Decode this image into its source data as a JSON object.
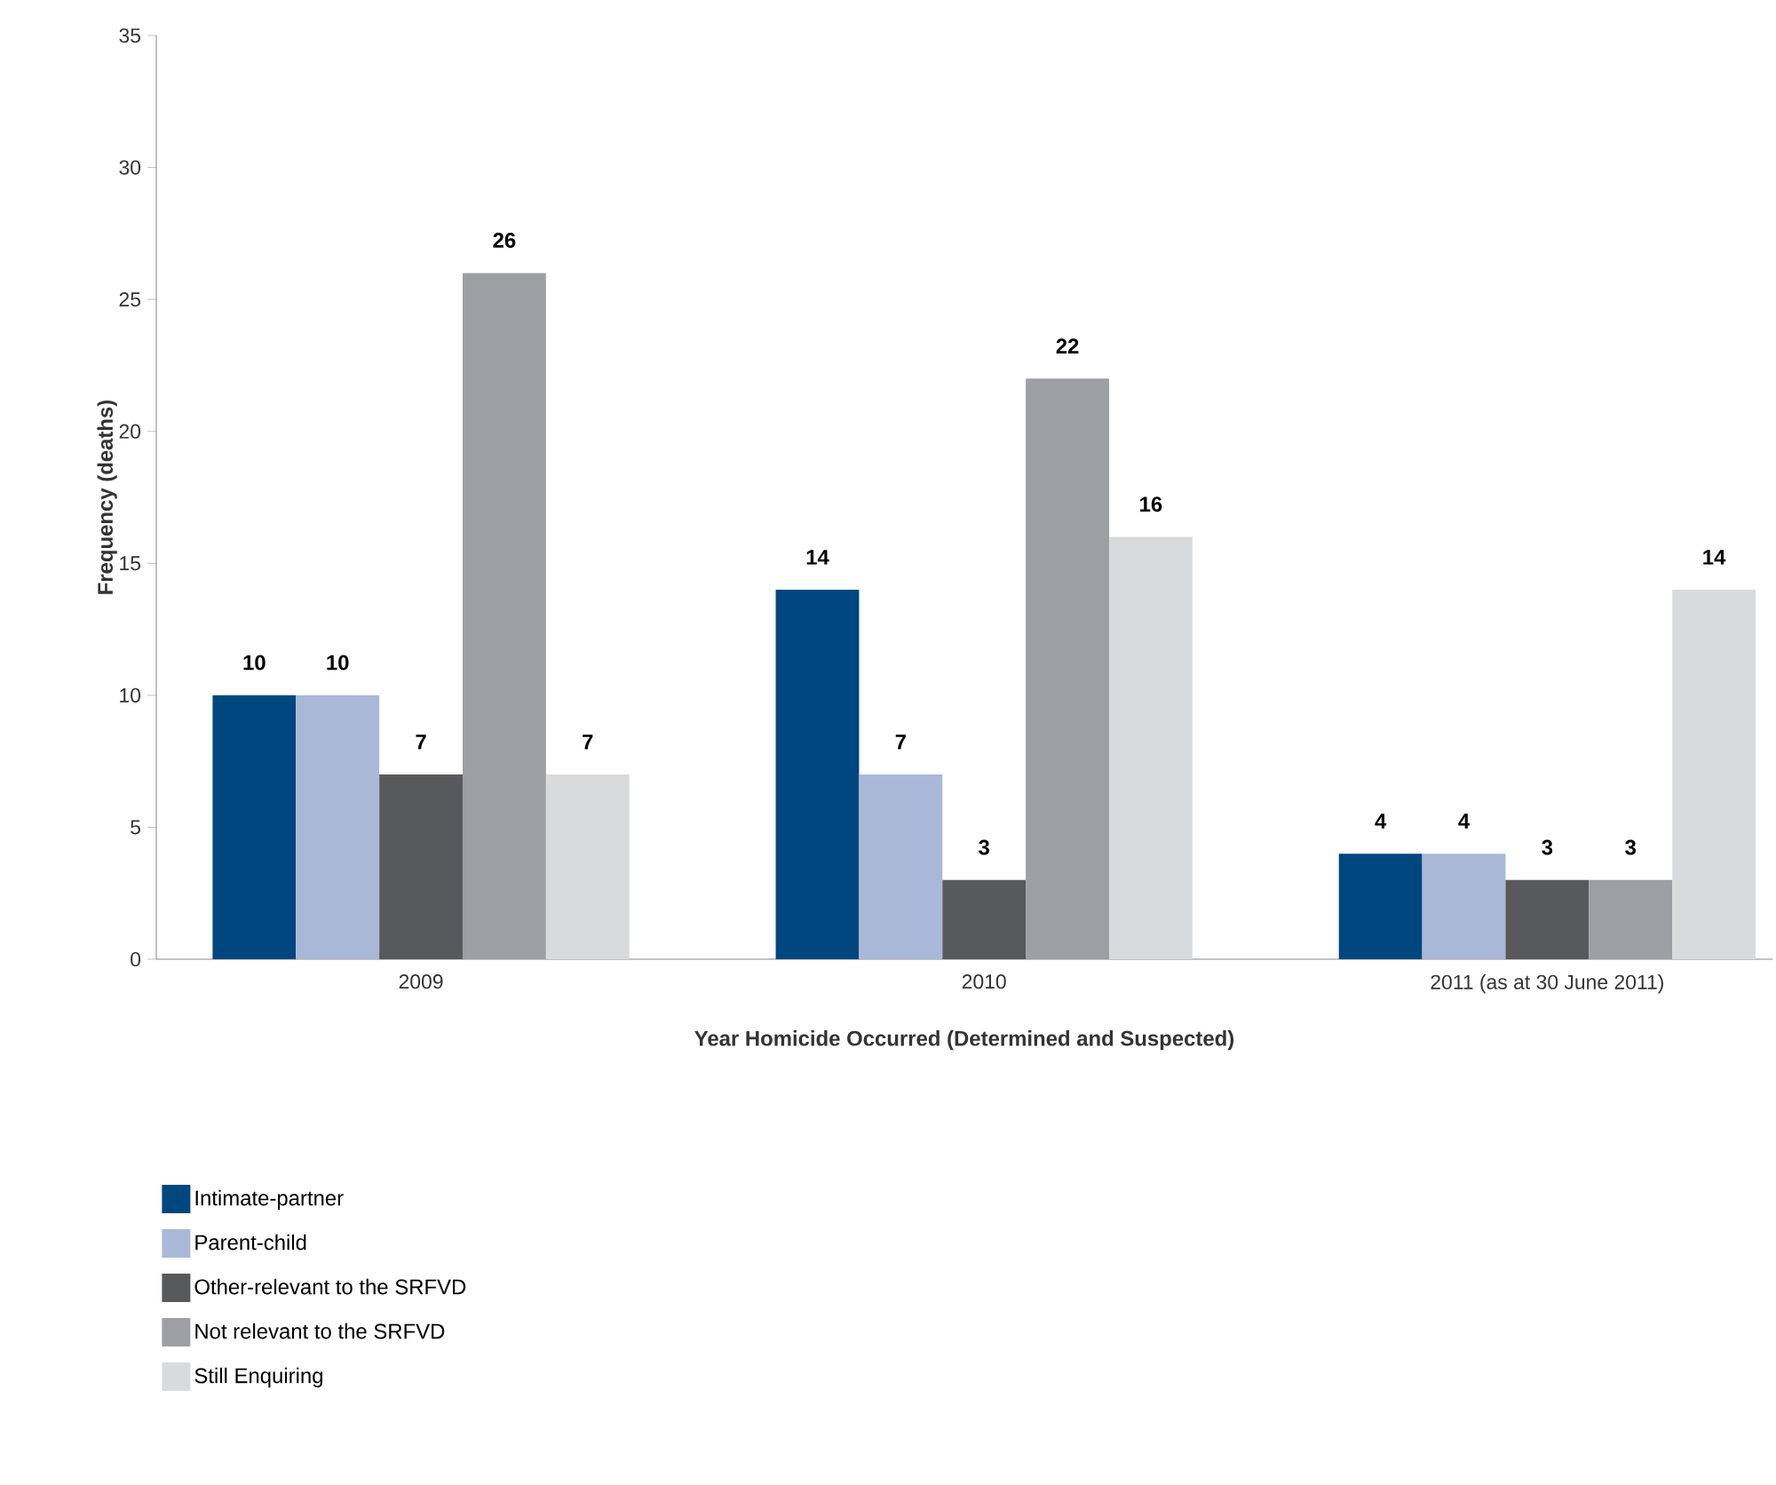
{
  "chart_data": {
    "type": "bar",
    "xlabel": "Year Homicide Occurred (Determined and Suspected)",
    "ylabel": "Frequency (deaths)",
    "categories": [
      "2009",
      "2010",
      "2011 (as at 30 June 2011)"
    ],
    "series": [
      {
        "name": "Intimate-partner",
        "color": "#00467f",
        "values": [
          10,
          14,
          4
        ]
      },
      {
        "name": "Parent-child",
        "color": "#a9b8d6",
        "values": [
          10,
          7,
          4
        ]
      },
      {
        "name": "Other-relevant to the SRFVD",
        "color": "#58595b",
        "values": [
          7,
          3,
          3
        ]
      },
      {
        "name": "Not relevant to the SRFVD",
        "color": "#9d9fa2",
        "values": [
          26,
          22,
          3
        ]
      },
      {
        "name": "Still Enquiring",
        "color": "#d9dadc",
        "values": [
          7,
          16,
          14
        ]
      }
    ],
    "ylim": [
      0,
      35
    ],
    "yticks": [
      0,
      5,
      10,
      15,
      20,
      25,
      30,
      35
    ],
    "grid": false,
    "legend": "bottom left",
    "data_labels": true
  }
}
